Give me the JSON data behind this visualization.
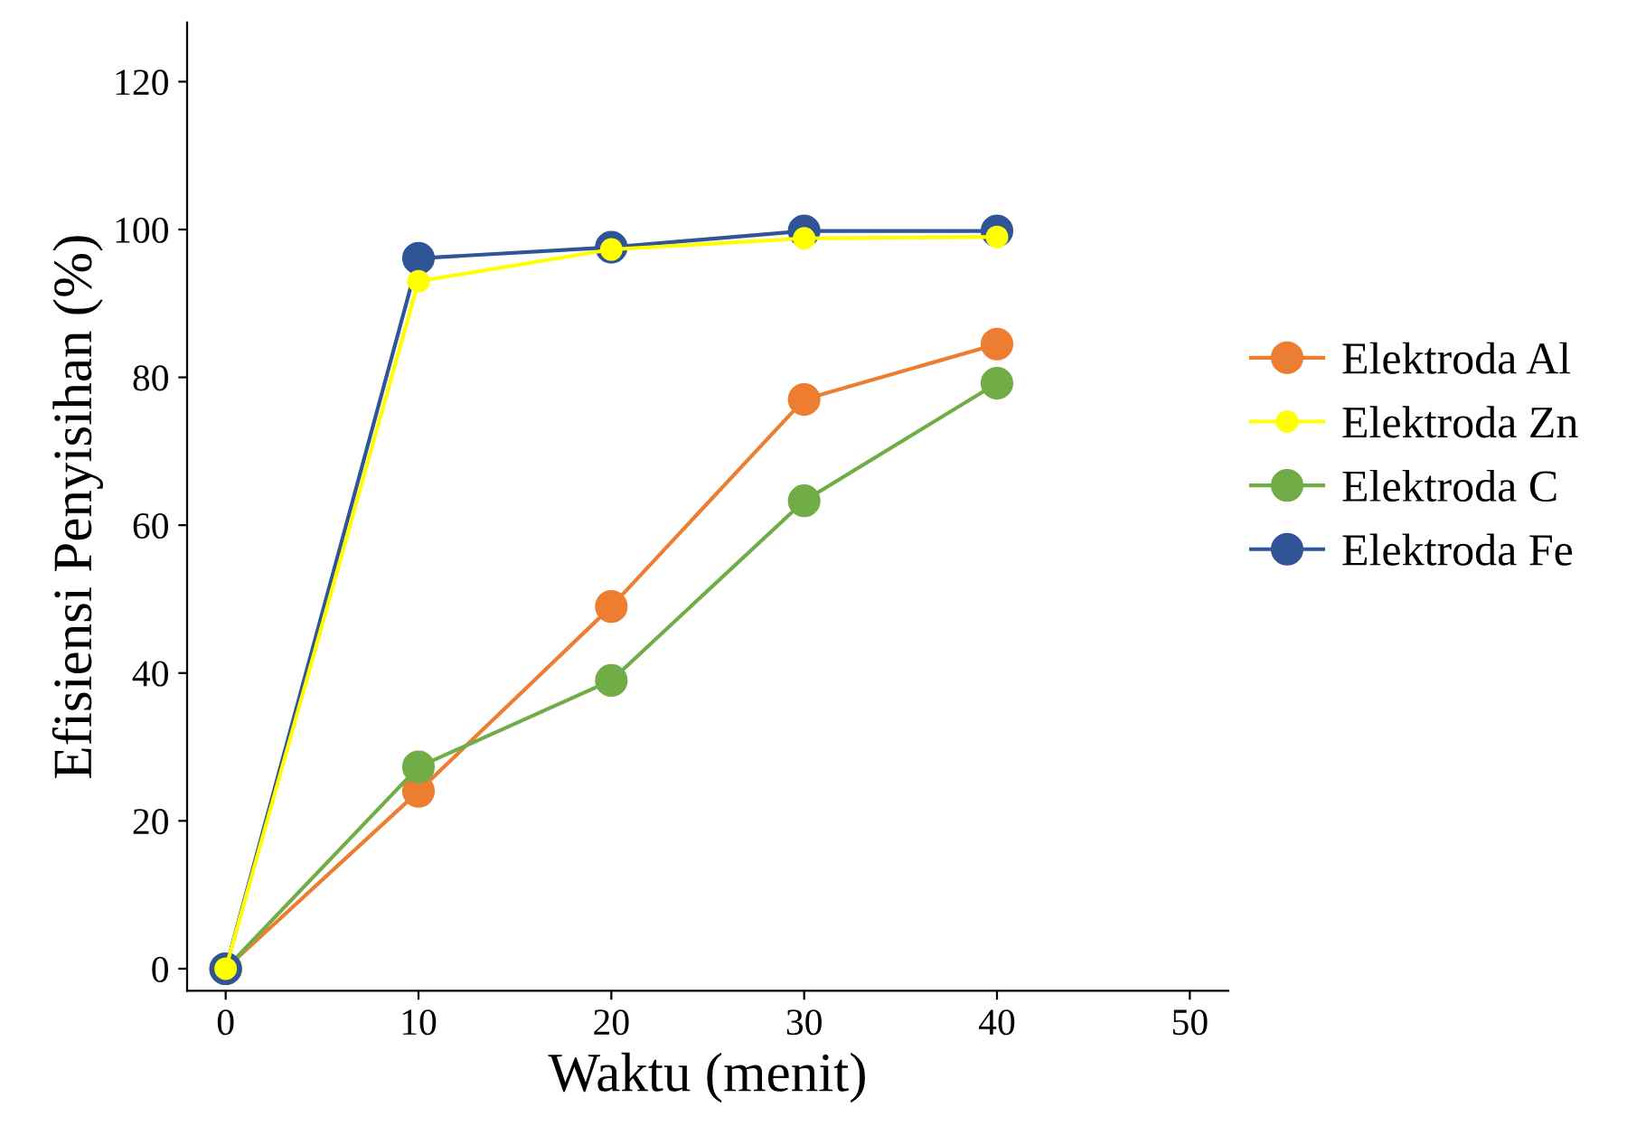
{
  "chart_data": {
    "type": "line",
    "xlabel": "Waktu (menit)",
    "ylabel": "Efisiensi Penyisihan (%)",
    "x": [
      0,
      10,
      20,
      30,
      40
    ],
    "series": [
      {
        "name": "Elektroda Al",
        "color": "#ed7d31",
        "values": [
          0,
          24,
          49,
          77,
          84.5
        ]
      },
      {
        "name": "Elektroda Zn",
        "color": "#ffff00",
        "values": [
          0,
          93,
          97.3,
          98.8,
          99
        ]
      },
      {
        "name": "Elektroda C",
        "color": "#70ad47",
        "values": [
          0,
          27.3,
          39,
          63.3,
          79.2
        ]
      },
      {
        "name": "Elektroda Fe",
        "color": "#2f5597",
        "values": [
          0,
          96.1,
          97.6,
          99.8,
          99.8
        ]
      }
    ],
    "xlim": [
      -2,
      52
    ],
    "ylim": [
      -3,
      128
    ],
    "xticks": [
      0,
      10,
      20,
      30,
      40,
      50
    ],
    "yticks": [
      0,
      20,
      40,
      60,
      80,
      100,
      120
    ],
    "grid": false,
    "legend": "right",
    "marker": "circle",
    "line_style": "solid"
  }
}
